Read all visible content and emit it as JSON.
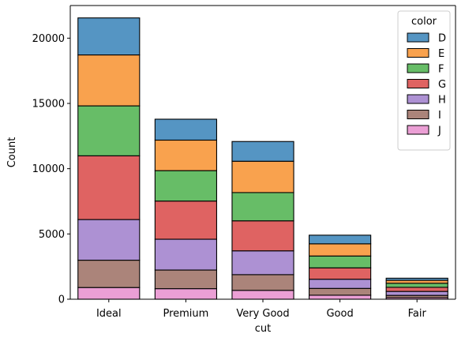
{
  "chart_data": {
    "type": "bar",
    "stacked": true,
    "xlabel": "cut",
    "ylabel": "Count",
    "categories": [
      "Ideal",
      "Premium",
      "Very Good",
      "Good",
      "Fair"
    ],
    "ylim": [
      0,
      22500
    ],
    "yticks": [
      0,
      5000,
      10000,
      15000,
      20000
    ],
    "grid": false,
    "legend": {
      "title": "color",
      "placement": "top-right"
    },
    "series": [
      {
        "name": "D",
        "color": "#4c8fc0",
        "values": [
          2834,
          1603,
          1513,
          662,
          163
        ]
      },
      {
        "name": "E",
        "color": "#f99d44",
        "values": [
          3903,
          2337,
          2400,
          933,
          224
        ]
      },
      {
        "name": "F",
        "color": "#5fb95f",
        "values": [
          3826,
          2331,
          2164,
          909,
          312
        ]
      },
      {
        "name": "G",
        "color": "#dd5b5a",
        "values": [
          4884,
          2924,
          2299,
          871,
          314
        ]
      },
      {
        "name": "H",
        "color": "#a98bd1",
        "values": [
          3115,
          2360,
          1824,
          702,
          303
        ]
      },
      {
        "name": "I",
        "color": "#a67d73",
        "values": [
          2093,
          1428,
          1204,
          522,
          175
        ]
      },
      {
        "name": "J",
        "color": "#ea9ad3",
        "values": [
          896,
          808,
          678,
          307,
          119
        ]
      }
    ]
  }
}
